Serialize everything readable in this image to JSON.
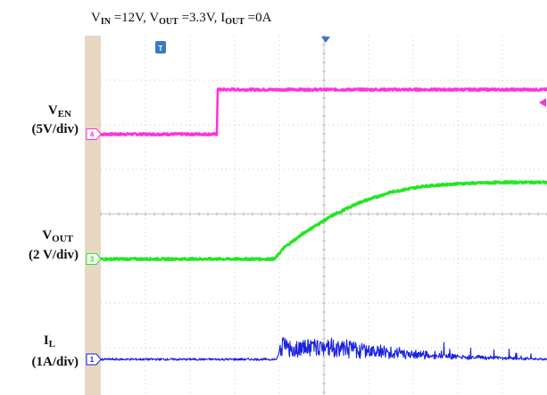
{
  "chart_data": {
    "type": "line",
    "title_parts": {
      "vin_main": "V",
      "vin_sub": "IN",
      "vin_value": " =12V, ",
      "vout_main": "V",
      "vout_sub": "OUT",
      "vout_value": " =3.3V, ",
      "iout_main": "I",
      "iout_sub": "OUT",
      "iout_value": " =0A"
    },
    "grid": true,
    "divisions": {
      "x": 10,
      "y": 8
    },
    "trigger_marker": "T",
    "colors": {
      "background": "#ffffff",
      "left_bar": "#e8d7c3",
      "grid": "#b8b8b8",
      "trigger": "#3a78c8"
    },
    "channels": [
      {
        "id": "en",
        "marker": "4",
        "label_main": "V",
        "label_sub": "EN",
        "label_scale": "(5V/div)",
        "color": "#ff33d9",
        "baseline_div": 5.85,
        "samples": [
          [
            0,
            0
          ],
          [
            2.6,
            0
          ],
          [
            2.62,
            1.0
          ],
          [
            10,
            1.0
          ]
        ]
      },
      {
        "id": "vout",
        "marker": "3",
        "label_main": "V",
        "label_sub": "OUT",
        "label_scale": "(2 V/div)",
        "color": "#22e622",
        "baseline_div": 3.05,
        "samples": [
          [
            0,
            0
          ],
          [
            3.9,
            0
          ],
          [
            4.1,
            0.25
          ],
          [
            4.6,
            0.62
          ],
          [
            5.2,
            0.98
          ],
          [
            5.8,
            1.27
          ],
          [
            6.5,
            1.5
          ],
          [
            7.2,
            1.63
          ],
          [
            8.0,
            1.69
          ],
          [
            9.0,
            1.72
          ],
          [
            10,
            1.72
          ]
        ]
      },
      {
        "id": "il",
        "marker": "1",
        "label_main": "I",
        "label_sub": "L",
        "label_scale": "(1A/div)",
        "color": "#1a22e0",
        "baseline_div": 0.8,
        "samples": [
          [
            0,
            0
          ],
          [
            3.95,
            0
          ],
          [
            4.05,
            0.35
          ],
          [
            4.2,
            0.22
          ],
          [
            5.0,
            0.28
          ],
          [
            6.5,
            0.15
          ],
          [
            8.0,
            0.06
          ],
          [
            10,
            0
          ]
        ]
      }
    ]
  }
}
